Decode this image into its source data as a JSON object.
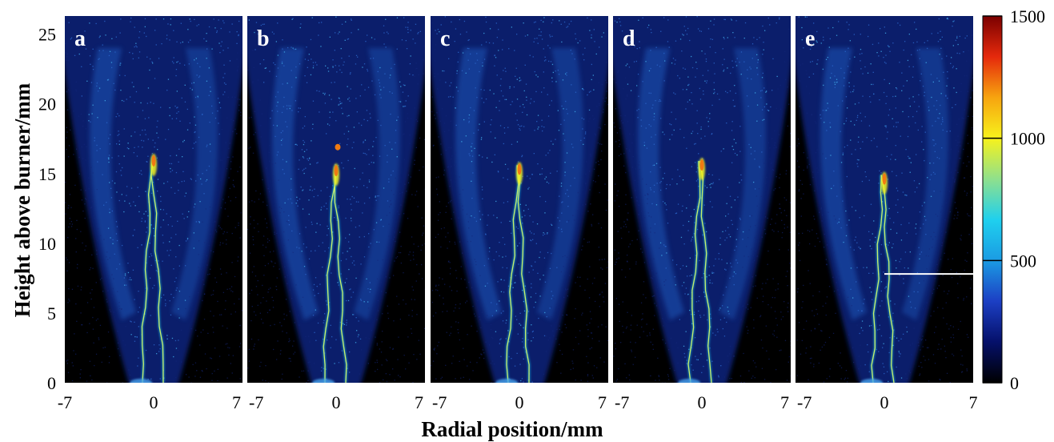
{
  "chart_data": {
    "type": "heatmap",
    "panels": [
      {
        "label": "a",
        "tip_height": 16.2,
        "split_height": null
      },
      {
        "label": "b",
        "tip_height": 15.5,
        "split_height": null,
        "isolated_spot_height": 16.9
      },
      {
        "label": "c",
        "tip_height": 15.6,
        "split_height": null
      },
      {
        "label": "d",
        "tip_height": 15.9,
        "split_height": null
      },
      {
        "label": "e",
        "tip_height": 14.9,
        "split_height": null,
        "reference_line_height": 7.8
      }
    ],
    "ylabel": "Height above burner/mm",
    "xlabel": "Radial position/mm",
    "y_ticks": [
      "0",
      "5",
      "10",
      "15",
      "20",
      "25"
    ],
    "x_ticks": [
      "-7",
      "0",
      "7"
    ],
    "ylim": [
      0,
      26.3
    ],
    "xlim": [
      -7,
      7
    ],
    "colorbar": {
      "ticks": [
        "0",
        "500",
        "1000",
        "1500"
      ],
      "range": [
        0,
        1500
      ],
      "colors": [
        "#000000",
        "#05106a",
        "#1c3fc4",
        "#1b9be3",
        "#1fd0ee",
        "#8fe08c",
        "#f7f21c",
        "#f7a40f",
        "#e5290c",
        "#7a0000"
      ]
    }
  }
}
